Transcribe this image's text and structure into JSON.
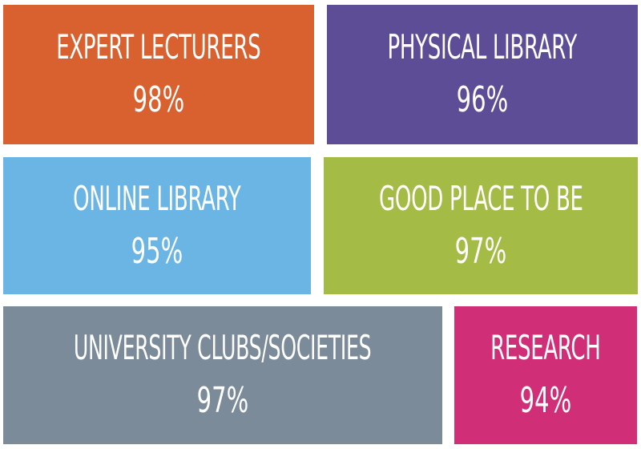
{
  "tiles": [
    {
      "label": "EXPERT LECTURERS",
      "value": "98%",
      "color": "#d9612f"
    },
    {
      "label": "PHYSICAL LIBRARY",
      "value": "96%",
      "color": "#5c4d96"
    },
    {
      "label": "ONLINE LIBRARY",
      "value": "95%",
      "color": "#6bb5e5"
    },
    {
      "label": "GOOD PLACE TO BE",
      "value": "97%",
      "color": "#a4bb45"
    },
    {
      "label": "UNIVERSITY CLUBS/SOCIETIES",
      "value": "97%",
      "color": "#7b8b9a"
    },
    {
      "label": "RESEARCH",
      "value": "94%",
      "color": "#d12e78"
    }
  ]
}
